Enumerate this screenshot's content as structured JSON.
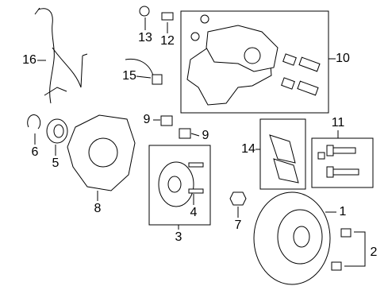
{
  "labels": [
    "1",
    "2",
    "3",
    "4",
    "5",
    "6",
    "7",
    "8",
    "9",
    "9",
    "10",
    "11",
    "12",
    "13",
    "14",
    "15",
    "16"
  ]
}
